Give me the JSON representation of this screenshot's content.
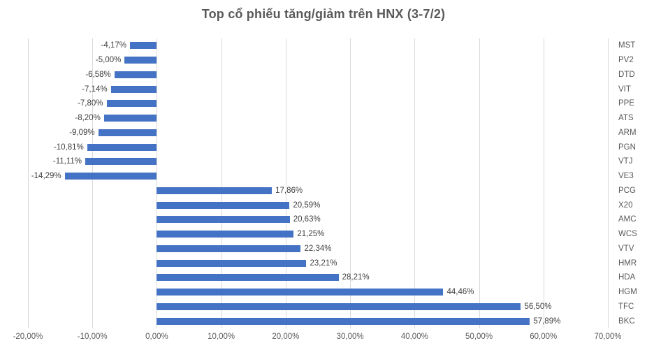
{
  "chart_data": {
    "type": "bar",
    "orientation": "horizontal",
    "title": "Top cổ phiếu tăng/giảm trên HNX (3-7/2)",
    "categories": [
      "MST",
      "PV2",
      "DTD",
      "VIT",
      "PPE",
      "ATS",
      "ARM",
      "PGN",
      "VTJ",
      "VE3",
      "PCG",
      "X20",
      "AMC",
      "WCS",
      "VTV",
      "HMR",
      "HDA",
      "HGM",
      "TFC",
      "BKC"
    ],
    "values": [
      -4.17,
      -5.0,
      -6.58,
      -7.14,
      -7.8,
      -8.2,
      -9.09,
      -10.81,
      -11.11,
      -14.29,
      17.86,
      20.59,
      20.63,
      21.25,
      22.34,
      23.21,
      28.21,
      44.46,
      56.5,
      57.89
    ],
    "value_labels": [
      "-4,17%",
      "-5,00%",
      "-6,58%",
      "-7,14%",
      "-7,80%",
      "-8,20%",
      "-9,09%",
      "-10,81%",
      "-11,11%",
      "-14,29%",
      "17,86%",
      "20,59%",
      "20,63%",
      "21,25%",
      "22,34%",
      "23,21%",
      "28,21%",
      "44,46%",
      "56,50%",
      "57,89%"
    ],
    "x_ticks": [
      -20,
      -10,
      0,
      10,
      20,
      30,
      40,
      50,
      60,
      70
    ],
    "x_tick_labels": [
      "-20,00%",
      "-10,00%",
      "0,00%",
      "10,00%",
      "20,00%",
      "30,00%",
      "40,00%",
      "50,00%",
      "60,00%",
      "70,00%"
    ],
    "xlim": [
      -20,
      70
    ],
    "xlabel": "",
    "ylabel": "",
    "grid": true,
    "legend": false,
    "bar_color": "#4472C4",
    "gridline_color": "#D9D9D9",
    "title_color": "#595959",
    "axis_label_color": "#595959",
    "data_label_color": "#404040"
  }
}
